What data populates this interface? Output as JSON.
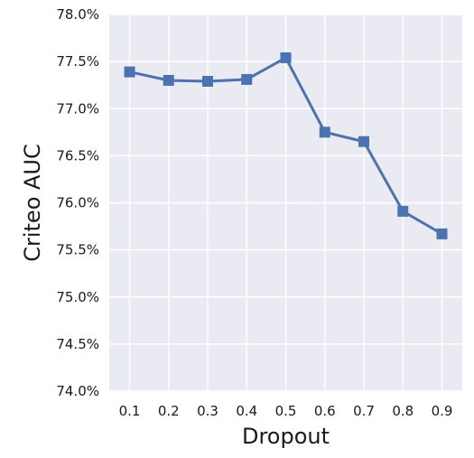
{
  "chart_data": {
    "type": "line",
    "xlabel": "Dropout",
    "ylabel": "Criteo AUC",
    "x": [
      "0.1",
      "0.2",
      "0.3",
      "0.4",
      "0.5",
      "0.6",
      "0.7",
      "0.8",
      "0.9"
    ],
    "y_ticks": [
      "74.0%",
      "74.5%",
      "75.0%",
      "75.5%",
      "76.0%",
      "76.5%",
      "77.0%",
      "77.5%",
      "78.0%"
    ],
    "ylim": [
      74.0,
      78.0
    ],
    "grid": true,
    "series": [
      {
        "values": [
          77.39,
          77.3,
          77.29,
          77.31,
          77.54,
          76.75,
          76.65,
          75.91,
          75.67
        ],
        "marker": "square",
        "color": "#4c72b0"
      }
    ],
    "plot_background": "#eaeaf2",
    "grid_color": "#ffffff"
  }
}
